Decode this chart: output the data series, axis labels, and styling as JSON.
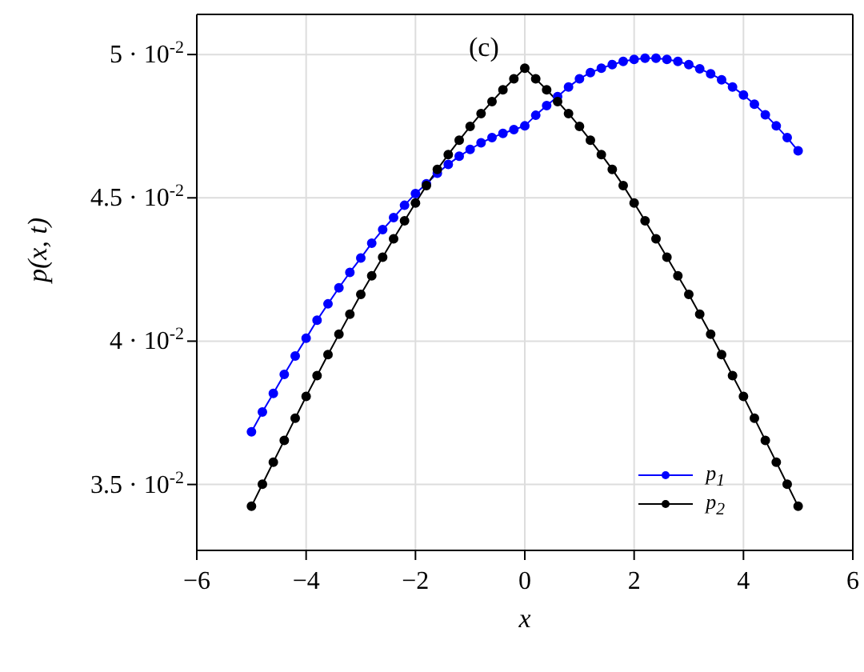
{
  "chart_data": {
    "type": "line",
    "xlabel": "x",
    "ylabel": "p(x, t)",
    "annotations": [
      "(c)"
    ],
    "x": [
      -5,
      -4.8,
      -4.6,
      -4.4,
      -4.2,
      -4,
      -3.8,
      -3.6,
      -3.4,
      -3.2,
      -3,
      -2.8,
      -2.6,
      -2.4,
      -2.2,
      -2,
      -1.8,
      -1.6,
      -1.4,
      -1.2,
      -1,
      -0.8,
      -0.6,
      -0.4,
      -0.2,
      0,
      0.2,
      0.4,
      0.6,
      0.8,
      1,
      1.2,
      1.4,
      1.6,
      1.8,
      2,
      2.2,
      2.4,
      2.6,
      2.8,
      3,
      3.2,
      3.4,
      3.6,
      3.8,
      4,
      4.2,
      4.4,
      4.6,
      4.8,
      5
    ],
    "series": [
      {
        "name": "p$_{1}$",
        "color": "#0000ff",
        "values": [
          0.03684,
          0.03753,
          0.03818,
          0.03884,
          0.03948,
          0.0401,
          0.04073,
          0.0413,
          0.04186,
          0.0424,
          0.0429,
          0.04342,
          0.04389,
          0.04431,
          0.04474,
          0.04515,
          0.04549,
          0.04586,
          0.04617,
          0.04645,
          0.04669,
          0.04692,
          0.0471,
          0.04725,
          0.04738,
          0.04751,
          0.04788,
          0.04822,
          0.04853,
          0.04887,
          0.04915,
          0.04937,
          0.04952,
          0.04965,
          0.04976,
          0.04983,
          0.04987,
          0.04987,
          0.04983,
          0.04976,
          0.04965,
          0.0495,
          0.04933,
          0.04912,
          0.04887,
          0.04859,
          0.04827,
          0.0479,
          0.04751,
          0.0471,
          0.04664
        ]
      },
      {
        "name": "p$_{2}$",
        "color": "#000000",
        "values": [
          0.03424,
          0.03501,
          0.03578,
          0.03654,
          0.03731,
          0.03807,
          0.0388,
          0.03953,
          0.04024,
          0.04094,
          0.04163,
          0.04228,
          0.04293,
          0.04357,
          0.0442,
          0.04482,
          0.04543,
          0.04599,
          0.04651,
          0.04701,
          0.04749,
          0.04794,
          0.04836,
          0.04877,
          0.04915,
          0.04952,
          0.04915,
          0.04877,
          0.04836,
          0.04794,
          0.04749,
          0.04701,
          0.04651,
          0.04599,
          0.04543,
          0.04482,
          0.0442,
          0.04357,
          0.04293,
          0.04228,
          0.04163,
          0.04094,
          0.04024,
          0.03953,
          0.0388,
          0.03807,
          0.03731,
          0.03654,
          0.03578,
          0.03501,
          0.03424
        ]
      }
    ],
    "xlim": [
      -6,
      6
    ],
    "xticks": [
      {
        "value": -6,
        "label": "−6"
      },
      {
        "value": -4,
        "label": "−4"
      },
      {
        "value": -2,
        "label": "−2"
      },
      0,
      2,
      4,
      6
    ],
    "ylim": [
      0.0327,
      0.0514
    ],
    "yticks": [
      {
        "value": 0.035,
        "label": "3.5 · 10$^{-2}$"
      },
      {
        "value": 0.04,
        "label": "4 · 10$^{-2}$"
      },
      {
        "value": 0.045,
        "label": "4.5 · 10$^{-2}$"
      },
      {
        "value": 0.05,
        "label": "5 · 10$^{-2}$"
      }
    ],
    "grid": true,
    "legend": "bottom right",
    "marker": "circle",
    "line_style": "solid"
  }
}
